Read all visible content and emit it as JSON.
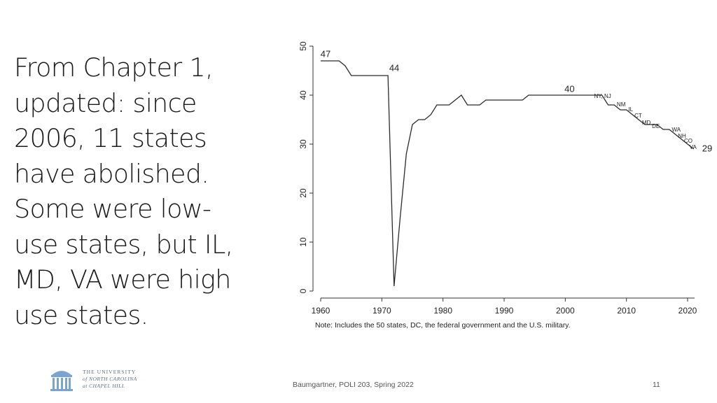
{
  "slide": {
    "text_lines": [
      "From Chapter 1,",
      "updated: since",
      "2006, 11 states",
      "have abolished.",
      "Some were low-",
      "use states, but IL,",
      "MD, VA were high",
      "use states."
    ]
  },
  "footer": {
    "center": "Baumgartner, POLI 203, Spring 2022",
    "page_number": "11"
  },
  "logo": {
    "line1": "THE UNIVERSITY",
    "line2": "of NORTH CAROLINA",
    "line3": "at CHAPEL HILL"
  },
  "chart_data": {
    "type": "line",
    "title": "",
    "xlabel": "",
    "ylabel": "",
    "xlim": [
      1960,
      2021
    ],
    "ylim": [
      0,
      50
    ],
    "x_ticks": [
      1960,
      1970,
      1980,
      1990,
      2000,
      2010,
      2020
    ],
    "y_ticks": [
      0,
      10,
      20,
      30,
      40,
      50
    ],
    "grid": false,
    "series": [
      {
        "points": [
          [
            1960,
            47
          ],
          [
            1963,
            47
          ],
          [
            1964,
            46
          ],
          [
            1965,
            44
          ],
          [
            1971,
            44
          ],
          [
            1972,
            1
          ],
          [
            1973,
            15
          ],
          [
            1974,
            28
          ],
          [
            1975,
            34
          ],
          [
            1976,
            35
          ],
          [
            1977,
            35
          ],
          [
            1978,
            36
          ],
          [
            1979,
            38
          ],
          [
            1981,
            38
          ],
          [
            1983,
            40
          ],
          [
            1984,
            38
          ],
          [
            1986,
            38
          ],
          [
            1987,
            39
          ],
          [
            1993,
            39
          ],
          [
            1994,
            40
          ],
          [
            2006,
            40
          ],
          [
            2007,
            38
          ],
          [
            2008,
            38
          ],
          [
            2009,
            37
          ],
          [
            2010,
            37
          ],
          [
            2011,
            36
          ],
          [
            2012,
            35
          ],
          [
            2013,
            34
          ],
          [
            2015,
            34
          ],
          [
            2016,
            33
          ],
          [
            2017,
            33
          ],
          [
            2018,
            32
          ],
          [
            2019,
            31
          ],
          [
            2020,
            30
          ],
          [
            2021,
            29
          ]
        ]
      }
    ],
    "point_labels": [
      {
        "text": "47",
        "x": 1960,
        "y": 47
      },
      {
        "text": "44",
        "x": 1971,
        "y": 44
      },
      {
        "text": "40",
        "x": 2000,
        "y": 40
      },
      {
        "text": "29",
        "x": 2021,
        "y": 29
      }
    ],
    "annotations": [
      {
        "text": "NY, NJ",
        "x": 2007,
        "y": 38
      },
      {
        "text": "NM",
        "x": 2009,
        "y": 37
      },
      {
        "text": "IL",
        "x": 2011,
        "y": 36
      },
      {
        "text": "CT",
        "x": 2012,
        "y": 35
      },
      {
        "text": "MD",
        "x": 2013,
        "y": 34
      },
      {
        "text": "DE",
        "x": 2016,
        "y": 33
      },
      {
        "text": "WA",
        "x": 2018,
        "y": 32
      },
      {
        "text": "NH",
        "x": 2019,
        "y": 31
      },
      {
        "text": "CO",
        "x": 2020,
        "y": 30
      },
      {
        "text": "VA",
        "x": 2021,
        "y": 29
      }
    ],
    "note": "Note: Includes the 50 states, DC, the federal government and the U.S. military.",
    "line_color": "#2b2b2b"
  }
}
